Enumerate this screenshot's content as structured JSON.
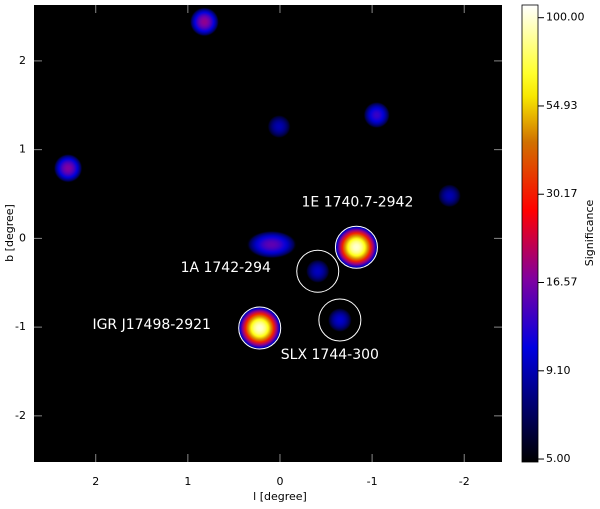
{
  "chart_data": {
    "type": "significance-map",
    "xlabel": "l [degree]",
    "ylabel": "b [degree]",
    "xlim": [
      2.67,
      -2.41
    ],
    "ylim": [
      -2.52,
      2.63
    ],
    "xticks": [
      2,
      1,
      0,
      -1,
      -2
    ],
    "yticks": [
      -2,
      -1,
      0,
      1,
      2
    ],
    "colorbar": {
      "title": "Significance",
      "log": true,
      "clim": [
        4.9,
        109
      ],
      "ticks": [
        {
          "value": 5,
          "label": "5.00"
        },
        {
          "value": 9.1,
          "label": "9.10"
        },
        16.57,
        30.17,
        54.93,
        {
          "value": 100,
          "label": "100.00"
        }
      ]
    },
    "sources": [
      {
        "name": null,
        "l": 0.82,
        "b": 2.44,
        "significance": 18,
        "circled": false
      },
      {
        "name": null,
        "l": 0.01,
        "b": 1.26,
        "significance": 9,
        "circled": false
      },
      {
        "name": null,
        "l": -1.05,
        "b": 1.39,
        "significance": 13,
        "circled": false
      },
      {
        "name": null,
        "l": 2.3,
        "b": 0.79,
        "significance": 17,
        "circled": false
      },
      {
        "name": null,
        "l": -1.84,
        "b": 0.48,
        "significance": 9,
        "circled": false
      },
      {
        "name": null,
        "l": 0.09,
        "b": -0.07,
        "significance": 15,
        "circled": false
      },
      {
        "name": "1E 1740.7-2942",
        "l": -0.83,
        "b": -0.1,
        "significance": 100,
        "circled": true
      },
      {
        "name": "1A 1742-294",
        "l": -0.41,
        "b": -0.37,
        "significance": 9.5,
        "circled": true
      },
      {
        "name": "IGR J17498-2921",
        "l": 0.22,
        "b": -1.01,
        "significance": 100,
        "circled": true
      },
      {
        "name": "SLX 1744-300",
        "l": -0.65,
        "b": -0.92,
        "significance": 10,
        "circled": true
      }
    ]
  }
}
